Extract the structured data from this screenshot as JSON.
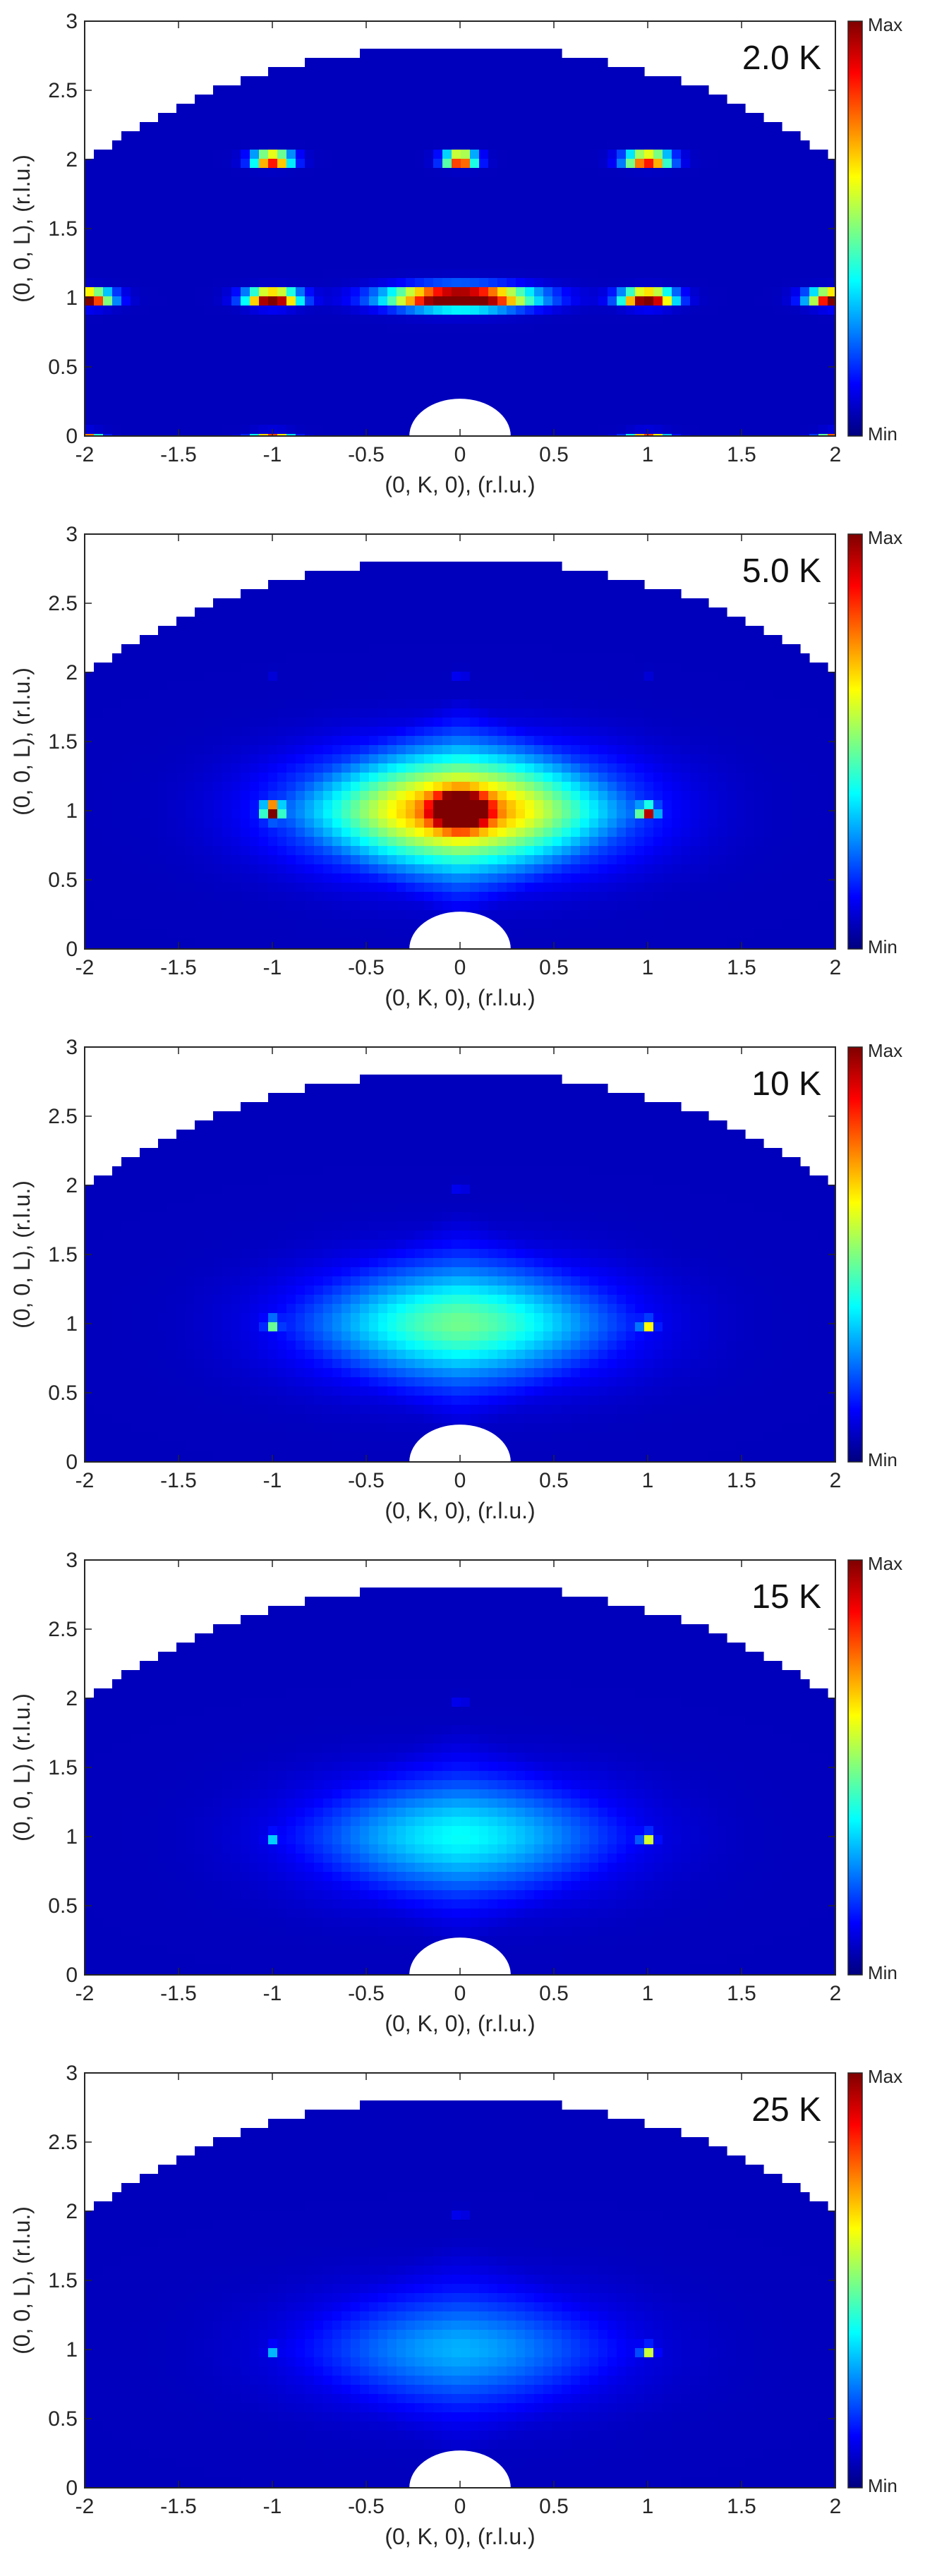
{
  "colors": {
    "background": "#00009f",
    "mask": "#ffffff",
    "colormap": [
      "#00007f",
      "#0000ff",
      "#007fff",
      "#00ffff",
      "#7fff7f",
      "#ffff00",
      "#ff7f00",
      "#ff0000",
      "#7f0000"
    ]
  },
  "colorbar": {
    "max_label": "Max",
    "min_label": "Min"
  },
  "chart_data": [
    {
      "type": "heatmap",
      "annotation": "2.0 K",
      "xlabel": "(0, K, 0), (r.l.u.)",
      "ylabel": "(0, 0, L), (r.l.u.)",
      "xlim": [
        -2,
        2
      ],
      "ylim": [
        0,
        3
      ],
      "xticks": [
        "-2",
        "-1.5",
        "-1",
        "-0.5",
        "0",
        "0.5",
        "1",
        "1.5",
        "2"
      ],
      "yticks": [
        "0",
        "0.5",
        "1",
        "1.5",
        "2",
        "2.5",
        "3"
      ],
      "diffuse": {
        "k": 0,
        "l": 1,
        "level": 0.0
      },
      "peaks": [
        {
          "k": 0,
          "l": 1,
          "level": 1.0,
          "wk": 0.42,
          "wl": 0.09
        },
        {
          "k": -1,
          "l": 1,
          "level": 1.0,
          "wk": 0.16,
          "wl": 0.06
        },
        {
          "k": 1,
          "l": 1,
          "level": 1.0,
          "wk": 0.16,
          "wl": 0.06
        },
        {
          "k": -2,
          "l": 1,
          "level": 1.0,
          "wk": 0.16,
          "wl": 0.06
        },
        {
          "k": 2,
          "l": 1,
          "level": 1.0,
          "wk": 0.16,
          "wl": 0.06
        },
        {
          "k": 0,
          "l": 2,
          "level": 1.0,
          "wk": 0.1,
          "wl": 0.05
        },
        {
          "k": -1,
          "l": 2,
          "level": 1.0,
          "wk": 0.12,
          "wl": 0.05
        },
        {
          "k": 1,
          "l": 2,
          "level": 1.0,
          "wk": 0.14,
          "wl": 0.05
        },
        {
          "k": -1,
          "l": 0,
          "level": 1.0,
          "wk": 0.12,
          "wl": 0.03
        },
        {
          "k": 1,
          "l": 0,
          "level": 1.0,
          "wk": 0.12,
          "wl": 0.03
        },
        {
          "k": -2,
          "l": 0,
          "level": 1.0,
          "wk": 0.1,
          "wl": 0.03
        },
        {
          "k": 2,
          "l": 0,
          "level": 1.0,
          "wk": 0.1,
          "wl": 0.03
        }
      ]
    },
    {
      "type": "heatmap",
      "annotation": "5.0 K",
      "xlabel": "(0, K, 0), (r.l.u.)",
      "ylabel": "(0, 0, L), (r.l.u.)",
      "xlim": [
        -2,
        2
      ],
      "ylim": [
        0,
        3
      ],
      "xticks": [
        "-2",
        "-1.5",
        "-1",
        "-0.5",
        "0",
        "0.5",
        "1",
        "1.5",
        "2"
      ],
      "yticks": [
        "0",
        "0.5",
        "1",
        "1.5",
        "2",
        "2.5",
        "3"
      ],
      "diffuse": {
        "k": 0,
        "l": 1,
        "level": 0.55
      },
      "peaks": [
        {
          "k": 0,
          "l": 1,
          "level": 1.0,
          "wk": 0.14,
          "wl": 0.12
        },
        {
          "k": -1,
          "l": 1,
          "level": 0.95,
          "wk": 0.05,
          "wl": 0.06
        },
        {
          "k": 1,
          "l": 1,
          "level": 1.0,
          "wk": 0.05,
          "wl": 0.04
        },
        {
          "k": 0,
          "l": 2,
          "level": 0.95,
          "wk": 0.04,
          "wl": 0.02
        },
        {
          "k": -1,
          "l": 2,
          "level": 0.35,
          "wk": 0.03,
          "wl": 0.02
        },
        {
          "k": 1,
          "l": 2,
          "level": 0.35,
          "wk": 0.03,
          "wl": 0.02
        }
      ]
    },
    {
      "type": "heatmap",
      "annotation": "10 K",
      "xlabel": "(0, K, 0), (r.l.u.)",
      "ylabel": "(0, 0, L), (r.l.u.)",
      "xlim": [
        -2,
        2
      ],
      "ylim": [
        0,
        3
      ],
      "xticks": [
        "-2",
        "-1.5",
        "-1",
        "-0.5",
        "0",
        "0.5",
        "1",
        "1.5",
        "2"
      ],
      "yticks": [
        "0",
        "0.5",
        "1",
        "1.5",
        "2",
        "2.5",
        "3"
      ],
      "diffuse": {
        "k": 0,
        "l": 1,
        "level": 0.32
      },
      "peaks": [
        {
          "k": 0,
          "l": 2,
          "level": 0.95,
          "wk": 0.04,
          "wl": 0.02
        },
        {
          "k": -1,
          "l": 1,
          "level": 0.45,
          "wk": 0.04,
          "wl": 0.04
        },
        {
          "k": 1,
          "l": 1,
          "level": 0.95,
          "wk": 0.04,
          "wl": 0.03
        }
      ]
    },
    {
      "type": "heatmap",
      "annotation": "15 K",
      "xlabel": "(0, K, 0), (r.l.u.)",
      "ylabel": "(0, 0, L), (r.l.u.)",
      "xlim": [
        -2,
        2
      ],
      "ylim": [
        0,
        3
      ],
      "xticks": [
        "-2",
        "-1.5",
        "-1",
        "-0.5",
        "0",
        "0.5",
        "1",
        "1.5",
        "2"
      ],
      "yticks": [
        "0",
        "0.5",
        "1",
        "1.5",
        "2",
        "2.5",
        "3"
      ],
      "diffuse": {
        "k": 0,
        "l": 1,
        "level": 0.24
      },
      "peaks": [
        {
          "k": 0,
          "l": 2,
          "level": 0.92,
          "wk": 0.04,
          "wl": 0.02
        },
        {
          "k": -1,
          "l": 1,
          "level": 0.4,
          "wk": 0.03,
          "wl": 0.03
        },
        {
          "k": 1,
          "l": 1,
          "level": 0.9,
          "wk": 0.04,
          "wl": 0.03
        }
      ]
    },
    {
      "type": "heatmap",
      "annotation": "25 K",
      "xlabel": "(0, K, 0), (r.l.u.)",
      "ylabel": "(0, 0, L), (r.l.u.)",
      "xlim": [
        -2,
        2
      ],
      "ylim": [
        0,
        3
      ],
      "xticks": [
        "-2",
        "-1.5",
        "-1",
        "-0.5",
        "0",
        "0.5",
        "1",
        "1.5",
        "2"
      ],
      "yticks": [
        "0",
        "0.5",
        "1",
        "1.5",
        "2",
        "2.5",
        "3"
      ],
      "diffuse": {
        "k": 0,
        "l": 1,
        "level": 0.18
      },
      "peaks": [
        {
          "k": 0,
          "l": 2,
          "level": 0.92,
          "wk": 0.04,
          "wl": 0.02
        },
        {
          "k": -1,
          "l": 1,
          "level": 0.38,
          "wk": 0.03,
          "wl": 0.03
        },
        {
          "k": 1,
          "l": 1,
          "level": 0.9,
          "wk": 0.04,
          "wl": 0.03
        }
      ]
    }
  ]
}
